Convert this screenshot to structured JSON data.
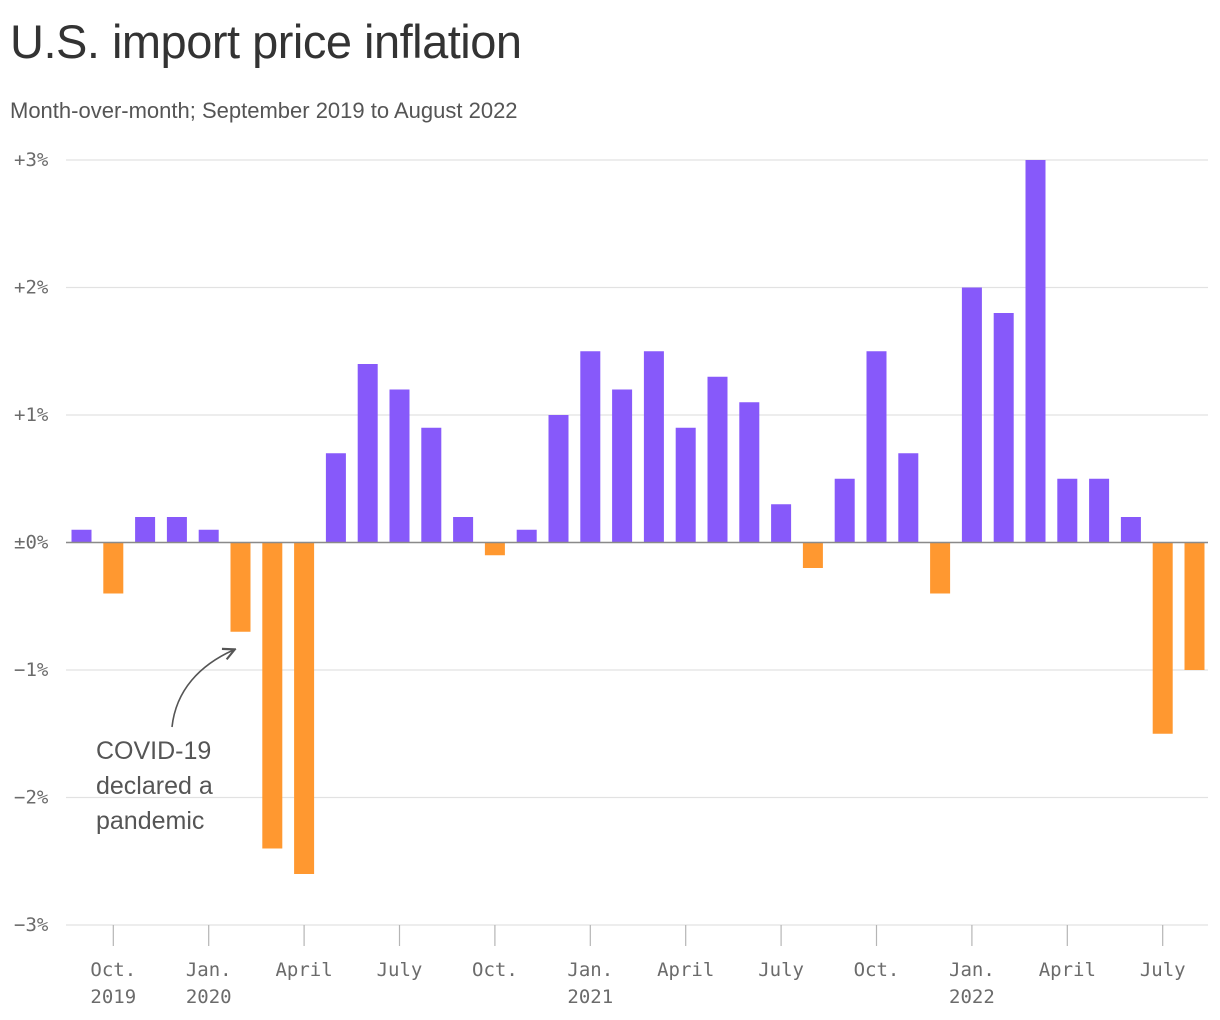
{
  "header": {
    "title": "U.S. import price inflation",
    "subtitle": "Month-over-month; September 2019 to August 2022"
  },
  "colors": {
    "positive": "#8759fa",
    "negative": "#ff9830",
    "grid": "#e2e2e2",
    "axis": "#8a8a8a",
    "text": "#333333"
  },
  "chart_data": {
    "type": "bar",
    "title": "U.S. import price inflation",
    "subtitle": "Month-over-month; September 2019 to August 2022",
    "ylim": [
      -3,
      3
    ],
    "grid": true,
    "y_ticks": [
      {
        "value": 3,
        "label": "+3%"
      },
      {
        "value": 2,
        "label": "+2%"
      },
      {
        "value": 1,
        "label": "+1%"
      },
      {
        "value": 0,
        "label": "±0%"
      },
      {
        "value": -1,
        "label": "−1%"
      },
      {
        "value": -2,
        "label": "−2%"
      },
      {
        "value": -3,
        "label": "−3%"
      }
    ],
    "x_ticks": [
      {
        "month": "2019-10",
        "line1": "Oct.",
        "line2": "2019"
      },
      {
        "month": "2020-01",
        "line1": "Jan.",
        "line2": "2020"
      },
      {
        "month": "2020-04",
        "line1": "April",
        "line2": ""
      },
      {
        "month": "2020-07",
        "line1": "July",
        "line2": ""
      },
      {
        "month": "2020-10",
        "line1": "Oct.",
        "line2": ""
      },
      {
        "month": "2021-01",
        "line1": "Jan.",
        "line2": "2021"
      },
      {
        "month": "2021-04",
        "line1": "April",
        "line2": ""
      },
      {
        "month": "2021-07",
        "line1": "July",
        "line2": ""
      },
      {
        "month": "2021-10",
        "line1": "Oct.",
        "line2": ""
      },
      {
        "month": "2022-01",
        "line1": "Jan.",
        "line2": "2022"
      },
      {
        "month": "2022-04",
        "line1": "April",
        "line2": ""
      },
      {
        "month": "2022-07",
        "line1": "July",
        "line2": ""
      }
    ],
    "months": [
      "2019-09",
      "2019-10",
      "2019-11",
      "2019-12",
      "2020-01",
      "2020-02",
      "2020-03",
      "2020-04",
      "2020-05",
      "2020-06",
      "2020-07",
      "2020-08",
      "2020-09",
      "2020-10",
      "2020-11",
      "2020-12",
      "2021-01",
      "2021-02",
      "2021-03",
      "2021-04",
      "2021-05",
      "2021-06",
      "2021-07",
      "2021-08",
      "2021-09",
      "2021-10",
      "2021-11",
      "2021-12",
      "2022-01",
      "2022-02",
      "2022-03",
      "2022-04",
      "2022-05",
      "2022-06",
      "2022-07",
      "2022-08"
    ],
    "values": [
      0.1,
      -0.4,
      0.2,
      0.2,
      0.1,
      -0.7,
      -2.4,
      -2.6,
      0.7,
      1.4,
      1.2,
      0.9,
      0.2,
      -0.1,
      0.1,
      1.0,
      1.5,
      1.2,
      1.5,
      0.9,
      1.3,
      1.1,
      0.3,
      -0.2,
      0.5,
      1.5,
      0.7,
      -0.4,
      2.0,
      1.8,
      3.0,
      0.5,
      0.5,
      0.2,
      -1.5,
      -1.0
    ],
    "annotations": [
      {
        "lines": [
          "COVID-19",
          "declared a",
          "pandemic"
        ],
        "points_to_month": "2020-02"
      }
    ]
  }
}
